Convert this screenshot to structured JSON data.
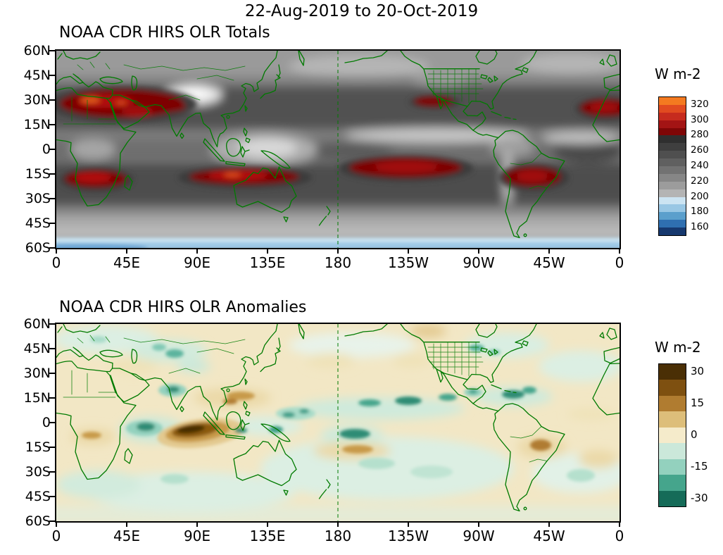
{
  "header": {
    "title": "22-Aug-2019 to 20-Oct-2019"
  },
  "axes": {
    "yticks": [
      "60N",
      "45N",
      "30N",
      "15N",
      "0",
      "15S",
      "30S",
      "45S",
      "60S"
    ],
    "xticks": [
      "0",
      "45E",
      "90E",
      "135E",
      "180",
      "135W",
      "90W",
      "45W",
      "0"
    ]
  },
  "panels": [
    {
      "title": "NOAA CDR HIRS OLR Totals",
      "colorbar": {
        "unit": "W m-2",
        "label_mode": "boundaries",
        "labels": [
          "320",
          "300",
          "280",
          "260",
          "240",
          "220",
          "200",
          "180",
          "160"
        ],
        "colors": [
          "#F47A20",
          "#E14B20",
          "#C62B1E",
          "#A31414",
          "#7E0606",
          "#2F2F2F",
          "#3F3F3F",
          "#4F4F4F",
          "#606060",
          "#727272",
          "#868686",
          "#9C9C9C",
          "#B4B4B4",
          "#CCE4F2",
          "#99C7E4",
          "#5B9FCC",
          "#2F6FB0",
          "#16386E"
        ]
      }
    },
    {
      "title": "NOAA CDR HIRS OLR Anomalies",
      "colorbar": {
        "unit": "W m-2",
        "label_mode": "centers",
        "labels": [
          "30",
          "15",
          "0",
          "-15",
          "-30"
        ],
        "colors": [
          "#4A2F05",
          "#7E5010",
          "#B07C30",
          "#DDBE7A",
          "#F5EBCB",
          "#CBE8DA",
          "#93D1BE",
          "#45A58C",
          "#156B58"
        ]
      }
    }
  ],
  "map": {
    "coastline_color": "#007A00",
    "dateline_label": "180"
  },
  "chart_data": [
    {
      "type": "heatmap",
      "title": "NOAA CDR HIRS OLR Totals",
      "units": "W m-2",
      "period": "22-Aug-2019 to 20-Oct-2019",
      "projection": "global cylindrical, longitude 0E eastward to 360E (180 at center), latitude 60N to 60S",
      "x_ticks": [
        "0",
        "45E",
        "90E",
        "135E",
        "180",
        "135W",
        "90W",
        "45W",
        "0"
      ],
      "y_ticks": [
        "60N",
        "45N",
        "30N",
        "15N",
        "0",
        "15S",
        "30S",
        "45S",
        "60S"
      ],
      "colorbar_levels": [
        320,
        300,
        280,
        260,
        240,
        220,
        200,
        180,
        160
      ],
      "legend_position": "right",
      "features": [
        {
          "feature": "high OLR >= 280 W m-2 (dark red)",
          "regions": [
            "Sahara and Arabian Peninsula (0-60E, 10-30N)",
            "southern Africa (10-35E, 10-25S)",
            "eastern Indian Ocean and NW Australia (95-145E, 10-25S)",
            "central South Pacific (170W-110W, 5-20S)",
            "central South America (70W-40W, 8-25S)",
            "subtropical NE Pacific (135W-110W, 25-32N)",
            "West Africa at right map edge (20W-0, 10-28N)"
          ],
          "peak_values": ">= 300-320 W m-2 in small orange cores over Sahara and NW Australia"
        },
        {
          "feature": "low OLR ~200-230 W m-2 (light gray)",
          "regions": [
            "Tibetan Plateau (75-100E, 28-38N)",
            "Maritime Continent / West Pacific warm pool (110-160E, 5S-5N)",
            "east Pacific ITCZ band (~5-10N)",
            "Atlantic ITCZ band (~5-10N)",
            "Southern Ocean poleward of 45S",
            "high northern latitudes 50-60N"
          ]
        },
        {
          "feature": "OLR < 190 W m-2 (blue)",
          "regions": [
            "Antarctic margin band along 60S"
          ]
        }
      ],
      "annotations": [
        "dashed green meridian line at 180",
        "green coastlines and country borders overlaid"
      ]
    },
    {
      "type": "heatmap",
      "title": "NOAA CDR HIRS OLR Anomalies",
      "units": "W m-2",
      "period": "22-Aug-2019 to 20-Oct-2019",
      "projection": "global cylindrical, longitude 0E eastward to 360E (180 at center), latitude 60N to 60S",
      "x_ticks": [
        "0",
        "45E",
        "90E",
        "135E",
        "180",
        "135W",
        "90W",
        "45W",
        "0"
      ],
      "y_ticks": [
        "60N",
        "45N",
        "30N",
        "15N",
        "0",
        "15S",
        "30S",
        "45S",
        "60S"
      ],
      "colorbar_levels": [
        30,
        15,
        0,
        -15,
        -30
      ],
      "legend_position": "right",
      "features": [
        {
          "feature": "strong positive anomaly >= +30 W m-2 (dark brown, suppressed convection)",
          "regions": [
            "eastern equatorial Indian Ocean south of Sumatra (75-105E, 0-15S)"
          ]
        },
        {
          "feature": "positive anomaly ~ +10 to +20 W m-2 (tan)",
          "regions": [
            "Philippines / South China Sea (105-135E, 8-20N)",
            "SW tropical Pacific (170E-170W, 10-20S)",
            "central Brazil (55W-40W, 10-20S)",
            "Angola / Congo (10-30E, 5-15S)",
            "NW Canada (130W-120W, ~58N)"
          ]
        },
        {
          "feature": "negative anomaly ~ -15 to -30 W m-2 (teal)",
          "regions": [
            "western Indian Ocean (50-70E, 0-10S)",
            "western India (70-80E, 15-25N)",
            "chain of cells across tropical North Pacific (180-110W, 8-18N)",
            "Caribbean and tropical Atlantic (80W-55W, 10-22N)",
            "equatorial central Pacific near dateline (5-10S)",
            "central Asia (55-80E, 35-50N)",
            "central North America (100W-85W, 40-50N)"
          ]
        },
        {
          "feature": "weak anomalies -7 to +7 W m-2 (cream / pale teal)",
          "regions": [
            "most mid-latitude oceans and continents"
          ]
        }
      ],
      "annotations": [
        "dashed green meridian line at 180",
        "green coastlines and country borders overlaid"
      ]
    }
  ]
}
